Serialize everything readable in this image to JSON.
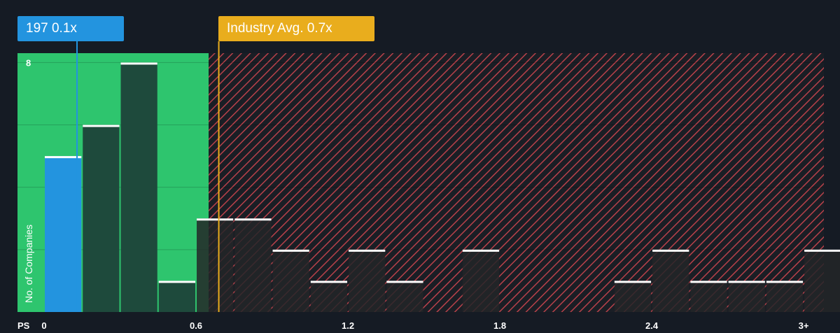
{
  "chart_data": {
    "type": "bar",
    "x_axis_label": "PS",
    "ylabel": "No. of Companies",
    "x_ticks": [
      {
        "value": 0,
        "label": "0"
      },
      {
        "value": 0.6,
        "label": "0.6"
      },
      {
        "value": 1.2,
        "label": "1.2"
      },
      {
        "value": 1.8,
        "label": "1.8"
      },
      {
        "value": 2.4,
        "label": "2.4"
      },
      {
        "value": 3.0,
        "label": "3+"
      }
    ],
    "y_ticks": [
      {
        "value": 8,
        "label": "8"
      }
    ],
    "xlim": [
      0,
      3.05
    ],
    "ylim": [
      0,
      8.3
    ],
    "bin_width": 0.15,
    "bins": [
      {
        "x0": 0.0,
        "count": 5,
        "highlight": true
      },
      {
        "x0": 0.15,
        "count": 6
      },
      {
        "x0": 0.3,
        "count": 8
      },
      {
        "x0": 0.45,
        "count": 1
      },
      {
        "x0": 0.6,
        "count": 3
      },
      {
        "x0": 0.75,
        "count": 3
      },
      {
        "x0": 0.9,
        "count": 2
      },
      {
        "x0": 1.05,
        "count": 1
      },
      {
        "x0": 1.2,
        "count": 2
      },
      {
        "x0": 1.35,
        "count": 1
      },
      {
        "x0": 1.65,
        "count": 2
      },
      {
        "x0": 2.25,
        "count": 1
      },
      {
        "x0": 2.4,
        "count": 2
      },
      {
        "x0": 2.55,
        "count": 1
      },
      {
        "x0": 2.7,
        "count": 1
      },
      {
        "x0": 2.85,
        "count": 1
      },
      {
        "x0": 3.0,
        "count": 2
      }
    ],
    "fair_zone_end": 0.65,
    "company": {
      "label": "197 0.1x",
      "value": 0.13,
      "color": "#2394df"
    },
    "industry_avg": {
      "label": "Industry Avg. 0.7x",
      "value": 0.69,
      "color": "#e9ad1d"
    },
    "colors": {
      "background": "#151b24",
      "fair_zone": "#2ec56e",
      "bar_in_zone": "#1e4a3c",
      "bar_outside": "#232628",
      "hatch": "#c94a52",
      "bar_top": "#ffffff"
    }
  }
}
